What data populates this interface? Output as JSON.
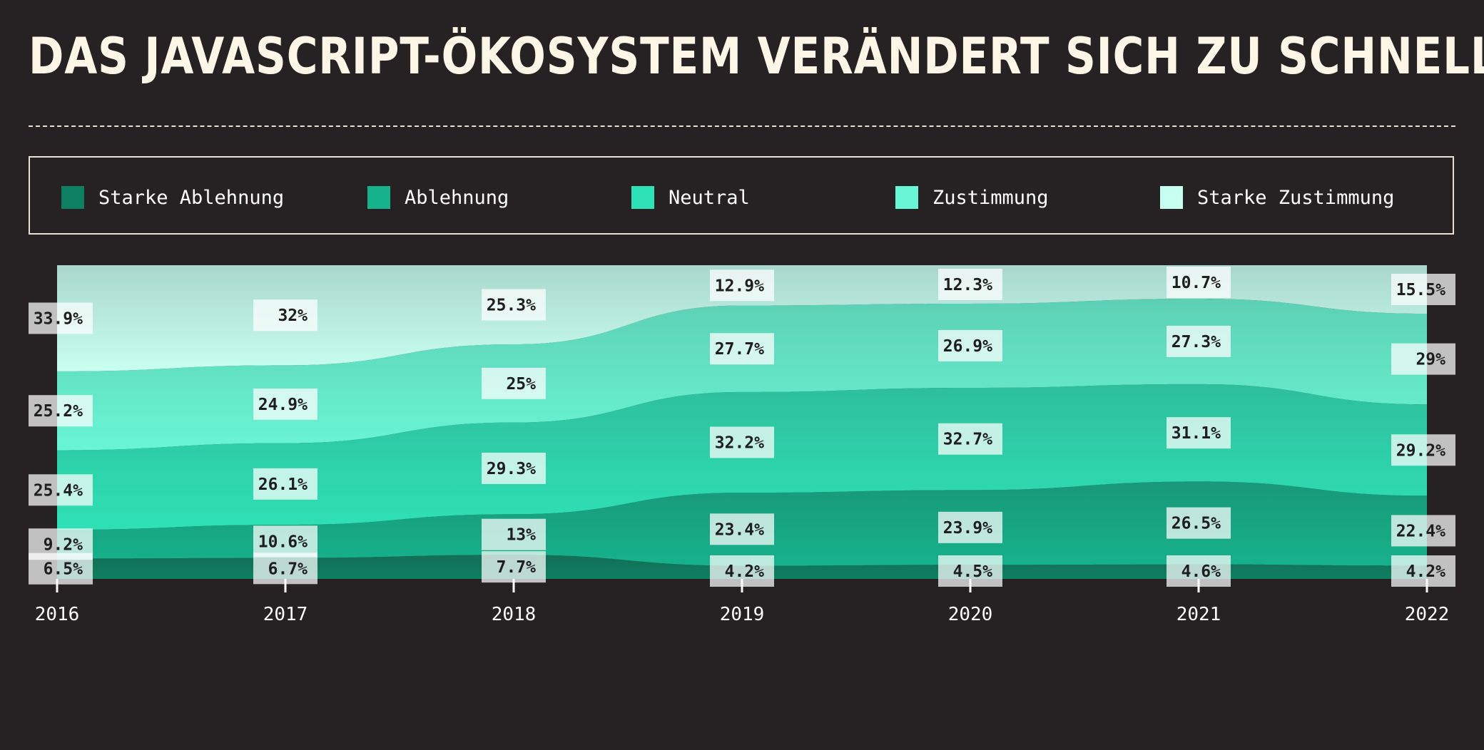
{
  "title": "DAS JAVASCRIPT-ÖKOSYSTEM VERÄNDERT SICH ZU SCHNELL.",
  "legend": [
    {
      "label": "Starke Ablehnung",
      "color": "#0e7f60"
    },
    {
      "label": "Ablehnung",
      "color": "#16b28b"
    },
    {
      "label": "Neutral",
      "color": "#2fe1b6"
    },
    {
      "label": "Zustimmung",
      "color": "#69f6d4"
    },
    {
      "label": "Starke Zustimmung",
      "color": "#c7fff0"
    }
  ],
  "chart_data": {
    "type": "area",
    "stacked": true,
    "normalized": true,
    "categories": [
      "2016",
      "2017",
      "2018",
      "2019",
      "2020",
      "2021",
      "2022"
    ],
    "series": [
      {
        "name": "Starke Ablehnung",
        "color": "#0e7f60",
        "values": [
          6.5,
          6.7,
          7.7,
          4.2,
          4.5,
          4.6,
          4.2
        ]
      },
      {
        "name": "Ablehnung",
        "color": "#16b28b",
        "values": [
          9.2,
          10.6,
          13,
          23.4,
          23.9,
          26.5,
          22.4
        ]
      },
      {
        "name": "Neutral",
        "color": "#2fe1b6",
        "values": [
          25.4,
          26.1,
          29.3,
          32.2,
          32.7,
          31.1,
          29.2
        ]
      },
      {
        "name": "Zustimmung",
        "color": "#69f6d4",
        "values": [
          25.2,
          24.9,
          25,
          27.7,
          26.9,
          27.3,
          29
        ]
      },
      {
        "name": "Starke Zustimmung",
        "color": "#c7fff0",
        "values": [
          33.9,
          32,
          25.3,
          12.9,
          12.3,
          10.7,
          15.5
        ]
      }
    ],
    "value_labels": [
      [
        "6.5%",
        "6.7%",
        "7.7%",
        "4.2%",
        "4.5%",
        "4.6%",
        "4.2%"
      ],
      [
        "9.2%",
        "10.6%",
        "13%",
        "23.4%",
        "23.9%",
        "26.5%",
        "22.4%"
      ],
      [
        "25.4%",
        "26.1%",
        "29.3%",
        "32.2%",
        "32.7%",
        "31.1%",
        "29.2%"
      ],
      [
        "25.2%",
        "24.9%",
        "25%",
        "27.7%",
        "26.9%",
        "27.3%",
        "29%"
      ],
      [
        "33.9%",
        "32%",
        "25.3%",
        "12.9%",
        "12.3%",
        "10.7%",
        "15.5%"
      ]
    ],
    "ylim": [
      0,
      100
    ],
    "grid": false,
    "legend_position": "top"
  }
}
